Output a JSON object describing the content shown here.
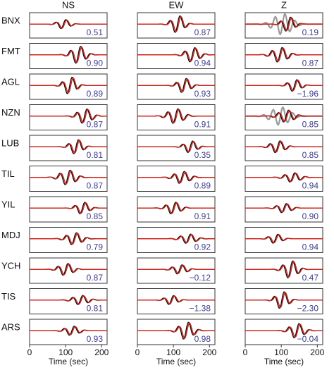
{
  "columns": [
    "NS",
    "EW",
    "Z"
  ],
  "rows": [
    {
      "station": "BNX",
      "values": [
        "0.51",
        "0.87",
        "0.19"
      ]
    },
    {
      "station": "FMT",
      "values": [
        "0.90",
        "0.94",
        "0.87"
      ]
    },
    {
      "station": "AGL",
      "values": [
        "0.89",
        "0.93",
        "−1.96"
      ]
    },
    {
      "station": "NZN",
      "values": [
        "0.87",
        "0.91",
        "0.85"
      ]
    },
    {
      "station": "LUB",
      "values": [
        "0.81",
        "0.35",
        "0.85"
      ]
    },
    {
      "station": "TIL",
      "values": [
        "0.87",
        "0.89",
        "0.94"
      ]
    },
    {
      "station": "YIL",
      "values": [
        "0.85",
        "0.91",
        "0.90"
      ]
    },
    {
      "station": "MDJ",
      "values": [
        "0.79",
        "0.92",
        "0.94"
      ]
    },
    {
      "station": "YCH",
      "values": [
        "0.87",
        "−0.12",
        "0.47"
      ]
    },
    {
      "station": "TIS",
      "values": [
        "0.81",
        "−1.38",
        "−2.30"
      ]
    },
    {
      "station": "ARS",
      "values": [
        "0.93",
        "0.98",
        "−0.04"
      ]
    }
  ],
  "x_axis": {
    "xlim": [
      0,
      215
    ],
    "ticks": [
      0,
      100,
      200
    ],
    "label": "Time (sec)"
  }
}
